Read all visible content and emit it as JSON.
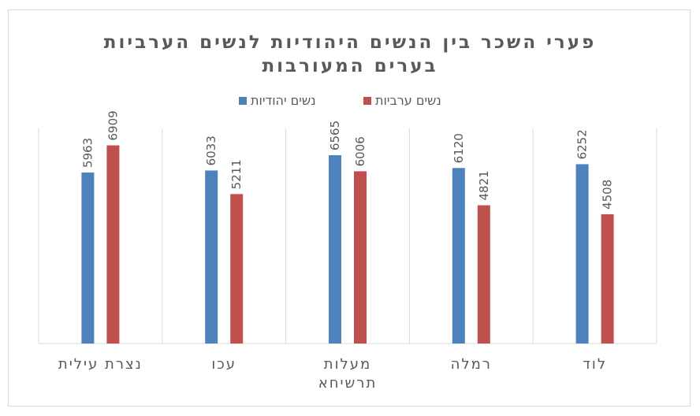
{
  "chart_data": {
    "type": "bar",
    "title_lines": [
      "פערי השכר בין הנשים היהודיות לנשים הערביות",
      "בערים המעורבות"
    ],
    "categories": [
      [
        "לוד"
      ],
      [
        "רמלה"
      ],
      [
        "מעלות",
        "תרשיחא"
      ],
      [
        "עכו"
      ],
      [
        "נצרת עילית"
      ]
    ],
    "series": [
      {
        "name": "נשים יהודיות",
        "color": "#4f81bd",
        "values": [
          6252,
          6120,
          6565,
          6033,
          5963
        ]
      },
      {
        "name": "נשים ערביות",
        "color": "#c0504d",
        "values": [
          4508,
          4821,
          6006,
          5211,
          6909
        ]
      }
    ],
    "ylim": [
      0,
      7500
    ],
    "category_order": "right-to-left",
    "legend_position": "top",
    "grid": "vertical-category-separators",
    "data_labels": "rotated-above-bars"
  }
}
